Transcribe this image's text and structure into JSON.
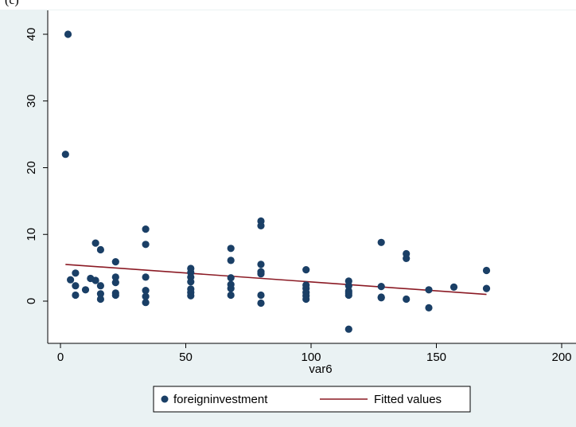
{
  "header": {
    "caption": "(c) "
  },
  "chart_data": {
    "type": "scatter",
    "title": "",
    "xlabel": "var6",
    "ylabel": "",
    "xlim": [
      0,
      200
    ],
    "ylim": [
      -5,
      42
    ],
    "x_ticks": [
      0,
      50,
      100,
      150,
      200
    ],
    "y_ticks": [
      0,
      10,
      20,
      30,
      40
    ],
    "grid": false,
    "legend_position": "bottom",
    "colors": {
      "marker": "#1a3f66",
      "line": "#8b1a24",
      "plot_bg": "#ffffff",
      "frame_bg": "#eaf2f3"
    },
    "series": [
      {
        "name": "foreigninvestment",
        "kind": "scatter",
        "points": [
          [
            2,
            22
          ],
          [
            3,
            40
          ],
          [
            4,
            3.2
          ],
          [
            6,
            4.2
          ],
          [
            6,
            2.3
          ],
          [
            6,
            0.9
          ],
          [
            10,
            1.7
          ],
          [
            12,
            3.4
          ],
          [
            14,
            8.7
          ],
          [
            14,
            3.1
          ],
          [
            16,
            7.7
          ],
          [
            16,
            2.3
          ],
          [
            16,
            1.1
          ],
          [
            16,
            0.3
          ],
          [
            22,
            5.9
          ],
          [
            22,
            3.6
          ],
          [
            22,
            2.8
          ],
          [
            22,
            1.2
          ],
          [
            22,
            0.9
          ],
          [
            34,
            10.8
          ],
          [
            34,
            8.5
          ],
          [
            34,
            3.6
          ],
          [
            34,
            1.6
          ],
          [
            34,
            0.7
          ],
          [
            34,
            -0.2
          ],
          [
            52,
            4.9
          ],
          [
            52,
            4.3
          ],
          [
            52,
            3.6
          ],
          [
            52,
            2.9
          ],
          [
            52,
            1.8
          ],
          [
            52,
            1.3
          ],
          [
            52,
            0.8
          ],
          [
            68,
            7.9
          ],
          [
            68,
            6.1
          ],
          [
            68,
            3.5
          ],
          [
            68,
            2.5
          ],
          [
            68,
            1.9
          ],
          [
            68,
            0.9
          ],
          [
            80,
            12
          ],
          [
            80,
            11.3
          ],
          [
            80,
            5.5
          ],
          [
            80,
            4.4
          ],
          [
            80,
            4.1
          ],
          [
            80,
            0.9
          ],
          [
            80,
            -0.3
          ],
          [
            98,
            4.7
          ],
          [
            98,
            2.4
          ],
          [
            98,
            1.9
          ],
          [
            98,
            1.3
          ],
          [
            98,
            0.8
          ],
          [
            98,
            0.3
          ],
          [
            115,
            3
          ],
          [
            115,
            2.3
          ],
          [
            115,
            1.5
          ],
          [
            115,
            1.2
          ],
          [
            115,
            0.9
          ],
          [
            115,
            -4.2
          ],
          [
            128,
            8.8
          ],
          [
            128,
            2.2
          ],
          [
            128,
            0.6
          ],
          [
            128,
            0.5
          ],
          [
            138,
            7.1
          ],
          [
            138,
            6.4
          ],
          [
            138,
            0.3
          ],
          [
            147,
            1.7
          ],
          [
            147,
            -1
          ],
          [
            157,
            2.1
          ],
          [
            170,
            4.6
          ],
          [
            170,
            1.9
          ]
        ]
      },
      {
        "name": "Fitted values",
        "kind": "line",
        "points": [
          [
            2,
            5.5
          ],
          [
            170,
            1.0
          ]
        ]
      }
    ]
  }
}
